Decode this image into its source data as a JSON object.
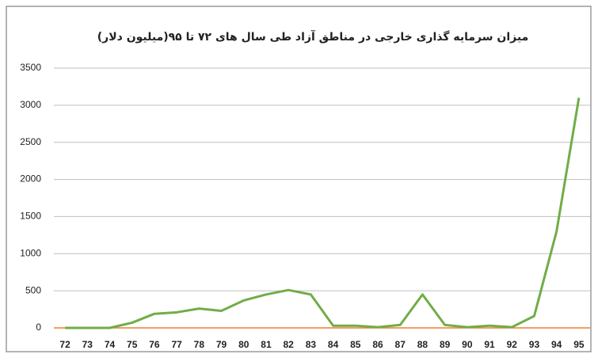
{
  "chart_data": {
    "type": "line",
    "title": "میزان سرمایه گذاری خارجی در مناطق آزاد طی سال های ۷۲ تا ۹۵(میلیون دلار)",
    "categories": [
      "72",
      "73",
      "74",
      "75",
      "76",
      "77",
      "78",
      "79",
      "80",
      "81",
      "82",
      "83",
      "84",
      "85",
      "86",
      "87",
      "88",
      "89",
      "90",
      "91",
      "92",
      "93",
      "94",
      "95"
    ],
    "series": [
      {
        "name": "investment",
        "color": "#70ad47",
        "values": [
          0,
          0,
          0,
          70,
          190,
          210,
          260,
          230,
          370,
          450,
          510,
          450,
          30,
          30,
          10,
          40,
          450,
          40,
          10,
          30,
          10,
          160,
          1300,
          3100
        ]
      }
    ],
    "ylim": [
      0,
      3500
    ],
    "yticks": [
      0,
      500,
      1000,
      1500,
      2000,
      2500,
      3000,
      3500
    ],
    "grid": true,
    "grid_color": "#bfbfbf",
    "axis_color": "#ed7d31"
  }
}
